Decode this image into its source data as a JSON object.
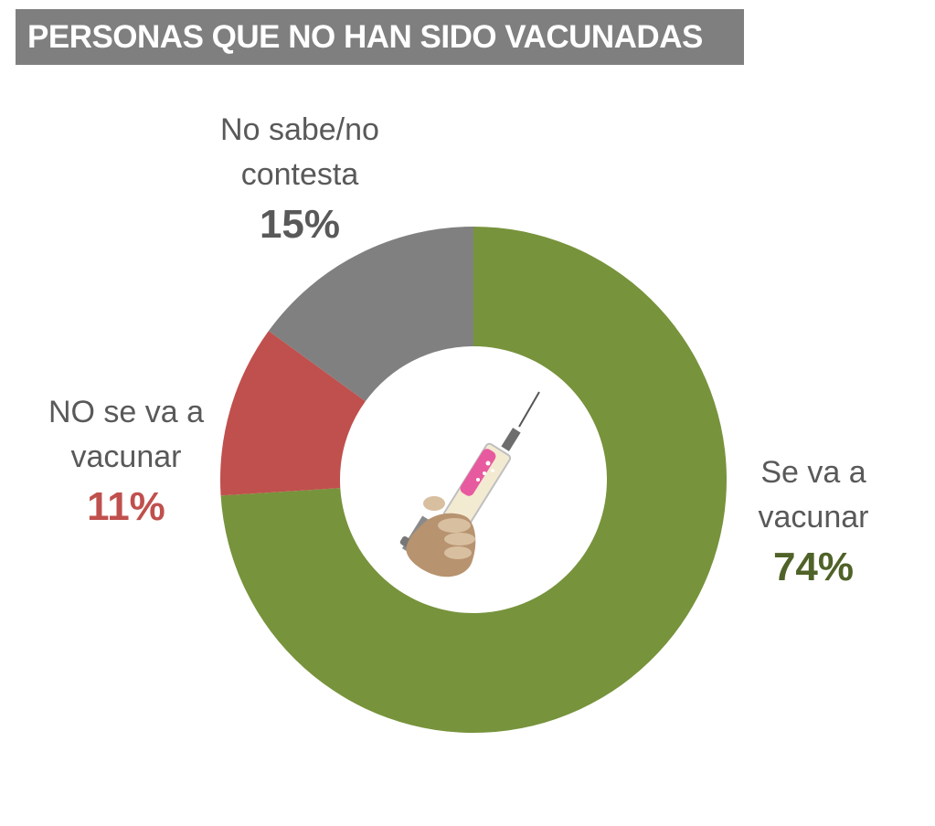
{
  "title": "PERSONAS QUE NO HAN SIDO VACUNADAS",
  "icon": "syringe-in-hand-icon",
  "chart_data": {
    "type": "pie",
    "variant": "donut",
    "title": "PERSONAS QUE NO HAN SIDO VACUNADAS",
    "categories": [
      "Se va a vacunar",
      "NO se va a vacunar",
      "No sabe/no contesta"
    ],
    "values": [
      74,
      11,
      15
    ],
    "labels": [
      "74%",
      "11%",
      "15%"
    ],
    "category_labels": [
      [
        "Se va a",
        "vacunar"
      ],
      [
        "NO se va a",
        "vacunar"
      ],
      [
        "No sabe/no",
        "contesta"
      ]
    ],
    "colors": [
      "#77933c",
      "#c0504d",
      "#808080"
    ],
    "label_colors": [
      "#4f6228",
      "#c0504d",
      "#595959"
    ]
  }
}
